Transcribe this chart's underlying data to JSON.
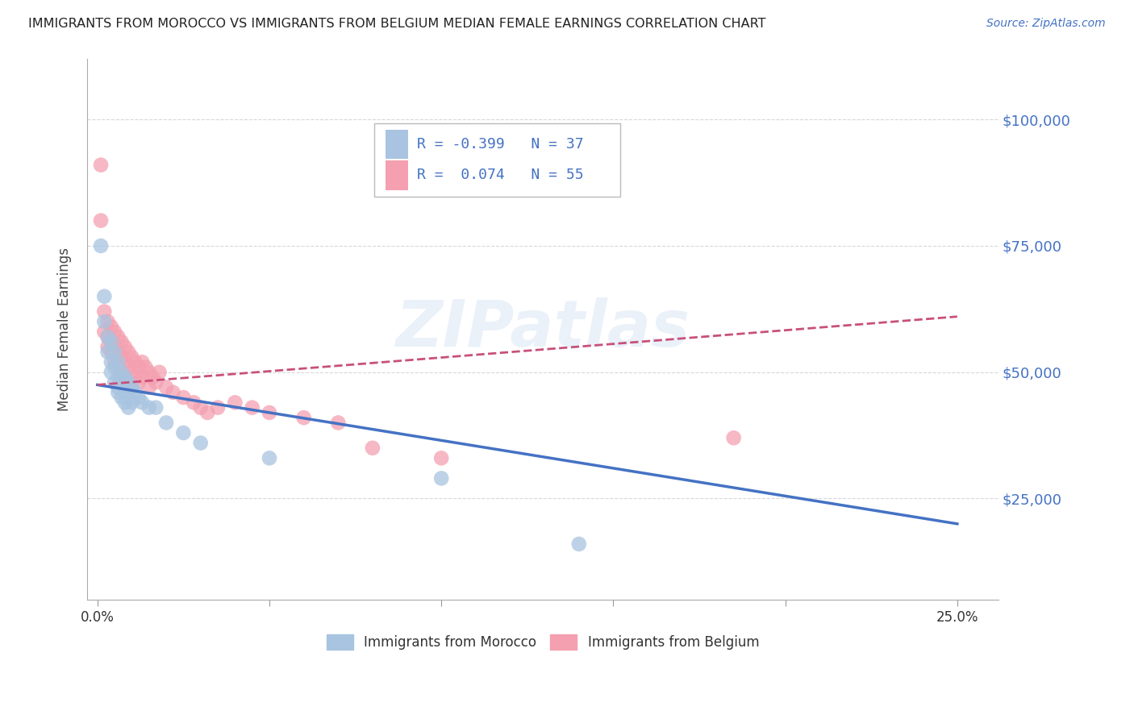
{
  "title": "IMMIGRANTS FROM MOROCCO VS IMMIGRANTS FROM BELGIUM MEDIAN FEMALE EARNINGS CORRELATION CHART",
  "source": "Source: ZipAtlas.com",
  "ylabel": "Median Female Earnings",
  "ytick_labels": [
    "$25,000",
    "$50,000",
    "$75,000",
    "$100,000"
  ],
  "ytick_vals": [
    25000,
    50000,
    75000,
    100000
  ],
  "xlim": [
    -0.003,
    0.262
  ],
  "ylim": [
    5000,
    112000
  ],
  "legend_entries": [
    {
      "color": "#a8c4e0",
      "label": "Immigrants from Morocco",
      "R": -0.399,
      "N": 37
    },
    {
      "color": "#f4a0b0",
      "label": "Immigrants from Belgium",
      "R": 0.074,
      "N": 55
    }
  ],
  "morocco_scatter": [
    [
      0.001,
      75000
    ],
    [
      0.002,
      65000
    ],
    [
      0.002,
      60000
    ],
    [
      0.003,
      57000
    ],
    [
      0.003,
      54000
    ],
    [
      0.004,
      56000
    ],
    [
      0.004,
      52000
    ],
    [
      0.004,
      50000
    ],
    [
      0.005,
      54000
    ],
    [
      0.005,
      51000
    ],
    [
      0.005,
      48000
    ],
    [
      0.006,
      52000
    ],
    [
      0.006,
      49000
    ],
    [
      0.006,
      47000
    ],
    [
      0.006,
      46000
    ],
    [
      0.007,
      50000
    ],
    [
      0.007,
      48000
    ],
    [
      0.007,
      45000
    ],
    [
      0.008,
      49000
    ],
    [
      0.008,
      47000
    ],
    [
      0.008,
      44000
    ],
    [
      0.009,
      48000
    ],
    [
      0.009,
      46000
    ],
    [
      0.009,
      43000
    ],
    [
      0.01,
      47000
    ],
    [
      0.01,
      44000
    ],
    [
      0.011,
      46000
    ],
    [
      0.012,
      45000
    ],
    [
      0.013,
      44000
    ],
    [
      0.015,
      43000
    ],
    [
      0.017,
      43000
    ],
    [
      0.02,
      40000
    ],
    [
      0.025,
      38000
    ],
    [
      0.03,
      36000
    ],
    [
      0.05,
      33000
    ],
    [
      0.1,
      29000
    ],
    [
      0.14,
      16000
    ]
  ],
  "belgium_scatter": [
    [
      0.001,
      91000
    ],
    [
      0.001,
      80000
    ],
    [
      0.002,
      62000
    ],
    [
      0.002,
      58000
    ],
    [
      0.003,
      60000
    ],
    [
      0.003,
      57000
    ],
    [
      0.003,
      55000
    ],
    [
      0.004,
      59000
    ],
    [
      0.004,
      56000
    ],
    [
      0.004,
      54000
    ],
    [
      0.005,
      58000
    ],
    [
      0.005,
      55000
    ],
    [
      0.005,
      52000
    ],
    [
      0.006,
      57000
    ],
    [
      0.006,
      54000
    ],
    [
      0.006,
      51000
    ],
    [
      0.007,
      56000
    ],
    [
      0.007,
      53000
    ],
    [
      0.007,
      50000
    ],
    [
      0.008,
      55000
    ],
    [
      0.008,
      52000
    ],
    [
      0.008,
      49000
    ],
    [
      0.009,
      54000
    ],
    [
      0.009,
      51000
    ],
    [
      0.009,
      48000
    ],
    [
      0.01,
      53000
    ],
    [
      0.01,
      50000
    ],
    [
      0.01,
      47000
    ],
    [
      0.011,
      52000
    ],
    [
      0.011,
      49000
    ],
    [
      0.012,
      51000
    ],
    [
      0.012,
      48000
    ],
    [
      0.013,
      52000
    ],
    [
      0.013,
      49000
    ],
    [
      0.014,
      51000
    ],
    [
      0.015,
      50000
    ],
    [
      0.015,
      47000
    ],
    [
      0.016,
      49000
    ],
    [
      0.017,
      48000
    ],
    [
      0.018,
      50000
    ],
    [
      0.02,
      47000
    ],
    [
      0.022,
      46000
    ],
    [
      0.025,
      45000
    ],
    [
      0.028,
      44000
    ],
    [
      0.03,
      43000
    ],
    [
      0.032,
      42000
    ],
    [
      0.035,
      43000
    ],
    [
      0.04,
      44000
    ],
    [
      0.045,
      43000
    ],
    [
      0.05,
      42000
    ],
    [
      0.06,
      41000
    ],
    [
      0.07,
      40000
    ],
    [
      0.08,
      35000
    ],
    [
      0.1,
      33000
    ],
    [
      0.185,
      37000
    ]
  ],
  "morocco_line_color": "#4472c4",
  "belgium_line_color": "#c8507a",
  "scatter_morocco_color": "#a8c4e0",
  "scatter_belgium_color": "#f4a0b0",
  "watermark_text": "ZIPatlas",
  "background_color": "#ffffff",
  "grid_color": "#d8d8d8",
  "xtick_positions": [
    0.0,
    0.05,
    0.1,
    0.15,
    0.2,
    0.25
  ],
  "xtick_show_labels": [
    true,
    false,
    false,
    false,
    false,
    true
  ],
  "xtick_label_vals": [
    "0.0%",
    "",
    "",
    "",
    "",
    "25.0%"
  ]
}
